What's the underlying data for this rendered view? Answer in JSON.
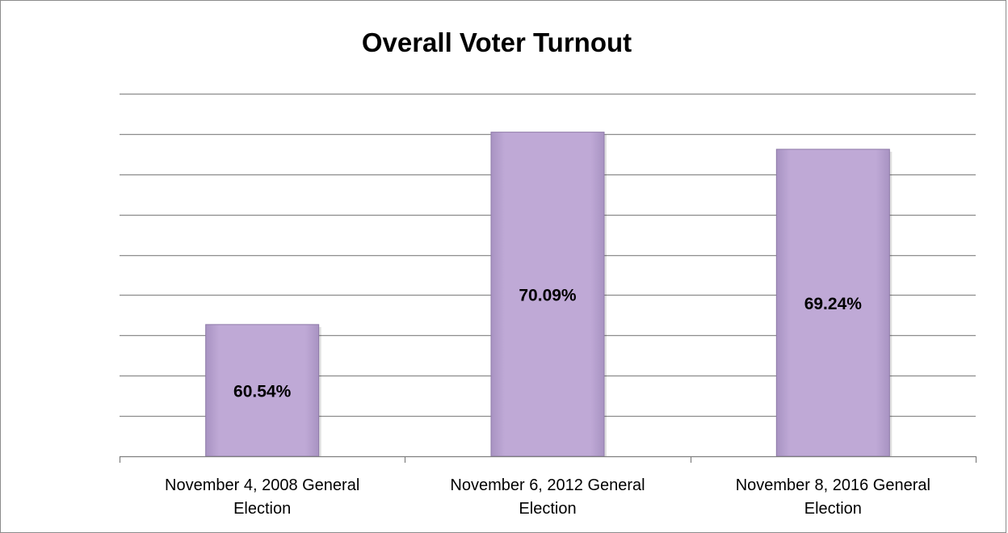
{
  "chart_data": {
    "type": "bar",
    "title": "Overall Voter Turnout",
    "categories": [
      [
        "November 4, 2008 General",
        "Election"
      ],
      [
        "November 6, 2012 General",
        "Election"
      ],
      [
        "November 8, 2016 General",
        "Election"
      ]
    ],
    "values": [
      60.54,
      70.09,
      69.24
    ],
    "data_labels": [
      "60.54%",
      "70.09%",
      "69.24%"
    ],
    "ylim": [
      54,
      72
    ],
    "grid": true,
    "y_axis_visible": false,
    "legend": "none",
    "colors": {
      "bar_fill": "#bfa9d6",
      "bar_edge": "#8e7aa8",
      "grid": "#8c8c8c",
      "axis": "#7f7f7f"
    }
  }
}
